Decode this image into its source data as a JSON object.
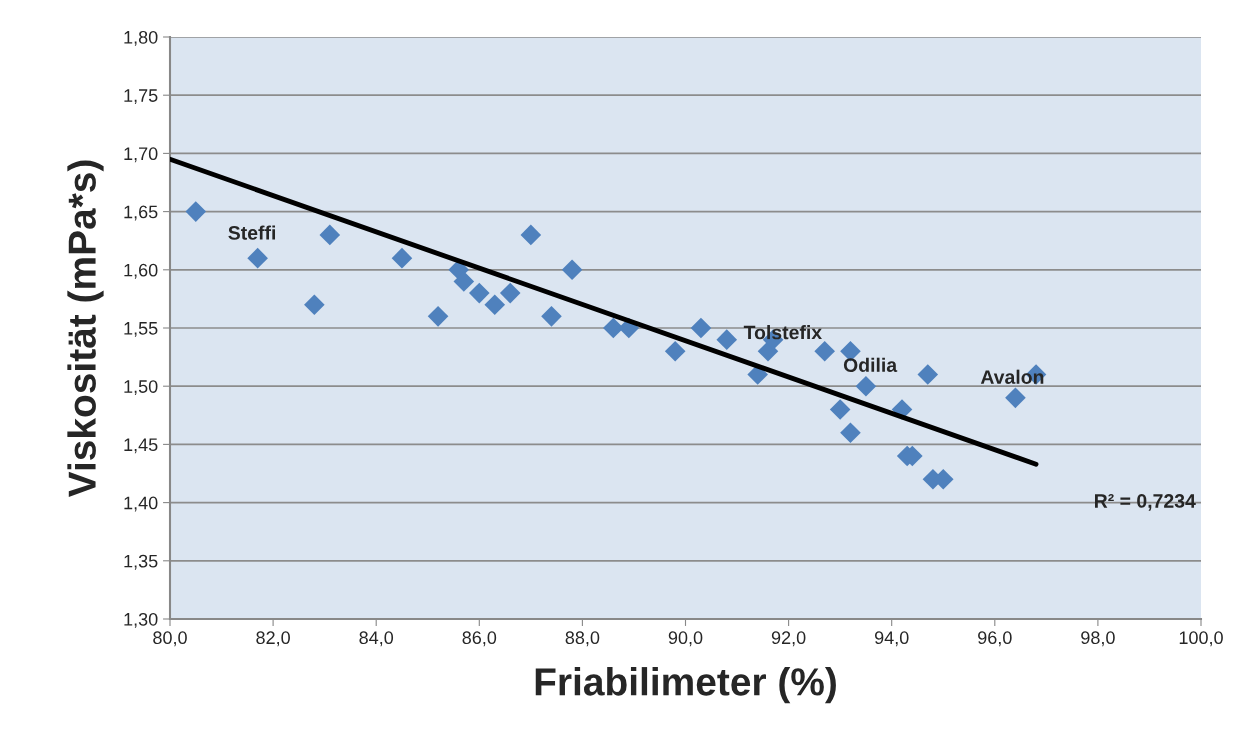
{
  "chart_data": {
    "type": "scatter",
    "xlabel": "Friabilimeter (%)",
    "ylabel": "Viskosität (mPa*s)",
    "xlim": [
      80,
      100
    ],
    "xticks": [
      {
        "value": 80,
        "label": "80,0"
      },
      {
        "value": 82,
        "label": "82,0"
      },
      {
        "value": 84,
        "label": "84,0"
      },
      {
        "value": 86,
        "label": "86,0"
      },
      {
        "value": 88,
        "label": "88,0"
      },
      {
        "value": 90,
        "label": "90,0"
      },
      {
        "value": 92,
        "label": "92,0"
      },
      {
        "value": 94,
        "label": "94,0"
      },
      {
        "value": 96,
        "label": "96,0"
      },
      {
        "value": 98,
        "label": "98,0"
      },
      {
        "value": 100,
        "label": "100,0"
      }
    ],
    "ylim": [
      1.3,
      1.8
    ],
    "yticks": [
      {
        "value": 1.3,
        "label": "1,30"
      },
      {
        "value": 1.35,
        "label": "1,35"
      },
      {
        "value": 1.4,
        "label": "1,40"
      },
      {
        "value": 1.45,
        "label": "1,45"
      },
      {
        "value": 1.5,
        "label": "1,50"
      },
      {
        "value": 1.55,
        "label": "1,55"
      },
      {
        "value": 1.6,
        "label": "1,60"
      },
      {
        "value": 1.65,
        "label": "1,65"
      },
      {
        "value": 1.7,
        "label": "1,70"
      },
      {
        "value": 1.75,
        "label": "1,75"
      },
      {
        "value": 1.8,
        "label": "1,80"
      }
    ],
    "grid": "y",
    "legend": false,
    "series": [
      {
        "marker": "diamond",
        "color": "#4f81bd",
        "x": [
          80.5,
          81.7,
          82.8,
          83.1,
          84.5,
          85.2,
          85.6,
          85.7,
          86.0,
          86.3,
          86.6,
          87.0,
          87.4,
          87.8,
          88.6,
          88.9,
          89.8,
          90.3,
          90.8,
          91.4,
          91.6,
          91.7,
          92.7,
          93.2,
          93.0,
          93.2,
          93.5,
          94.2,
          94.3,
          94.4,
          94.8,
          95.0,
          94.7,
          96.4,
          96.8
        ],
        "values": [
          1.65,
          1.61,
          1.57,
          1.63,
          1.61,
          1.56,
          1.6,
          1.59,
          1.58,
          1.57,
          1.58,
          1.63,
          1.56,
          1.6,
          1.55,
          1.55,
          1.53,
          1.55,
          1.54,
          1.51,
          1.53,
          1.54,
          1.53,
          1.53,
          1.48,
          1.46,
          1.5,
          1.48,
          1.44,
          1.44,
          1.42,
          1.42,
          1.51,
          1.49,
          1.51
        ]
      },
      {
        "type": "line",
        "color": "#000000",
        "x": [
          80.0,
          96.8
        ],
        "values": [
          1.695,
          1.433
        ]
      }
    ],
    "annotations": [
      {
        "text": "Steffi",
        "x": 81.7,
        "y": 1.61
      },
      {
        "text": "Tolstefix",
        "x": 91.7,
        "y": 1.54
      },
      {
        "text": "Odilia",
        "x": 93.5,
        "y": 1.5
      },
      {
        "text": "Avalon",
        "x": 96.8,
        "y": 1.51
      },
      "R² = 0,7234"
    ]
  }
}
